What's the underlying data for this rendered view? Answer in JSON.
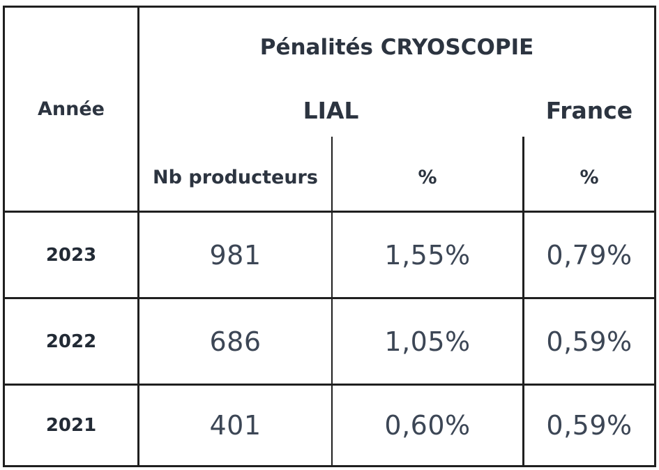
{
  "table": {
    "col_annee": "Année",
    "title": "Pénalités CRYOSCOPIE",
    "group_lial": "LIAL",
    "group_france": "France",
    "sub_nb": "Nb producteurs",
    "sub_pct_lial": "%",
    "sub_pct_france": "%",
    "rows": [
      {
        "year": "2023",
        "nb": "981",
        "pct_lial": "1,55%",
        "pct_france": "0,79%"
      },
      {
        "year": "2022",
        "nb": "686",
        "pct_lial": "1,05%",
        "pct_france": "0,59%"
      },
      {
        "year": "2021",
        "nb": "401",
        "pct_lial": "0,60%",
        "pct_france": "0,59%"
      }
    ]
  }
}
